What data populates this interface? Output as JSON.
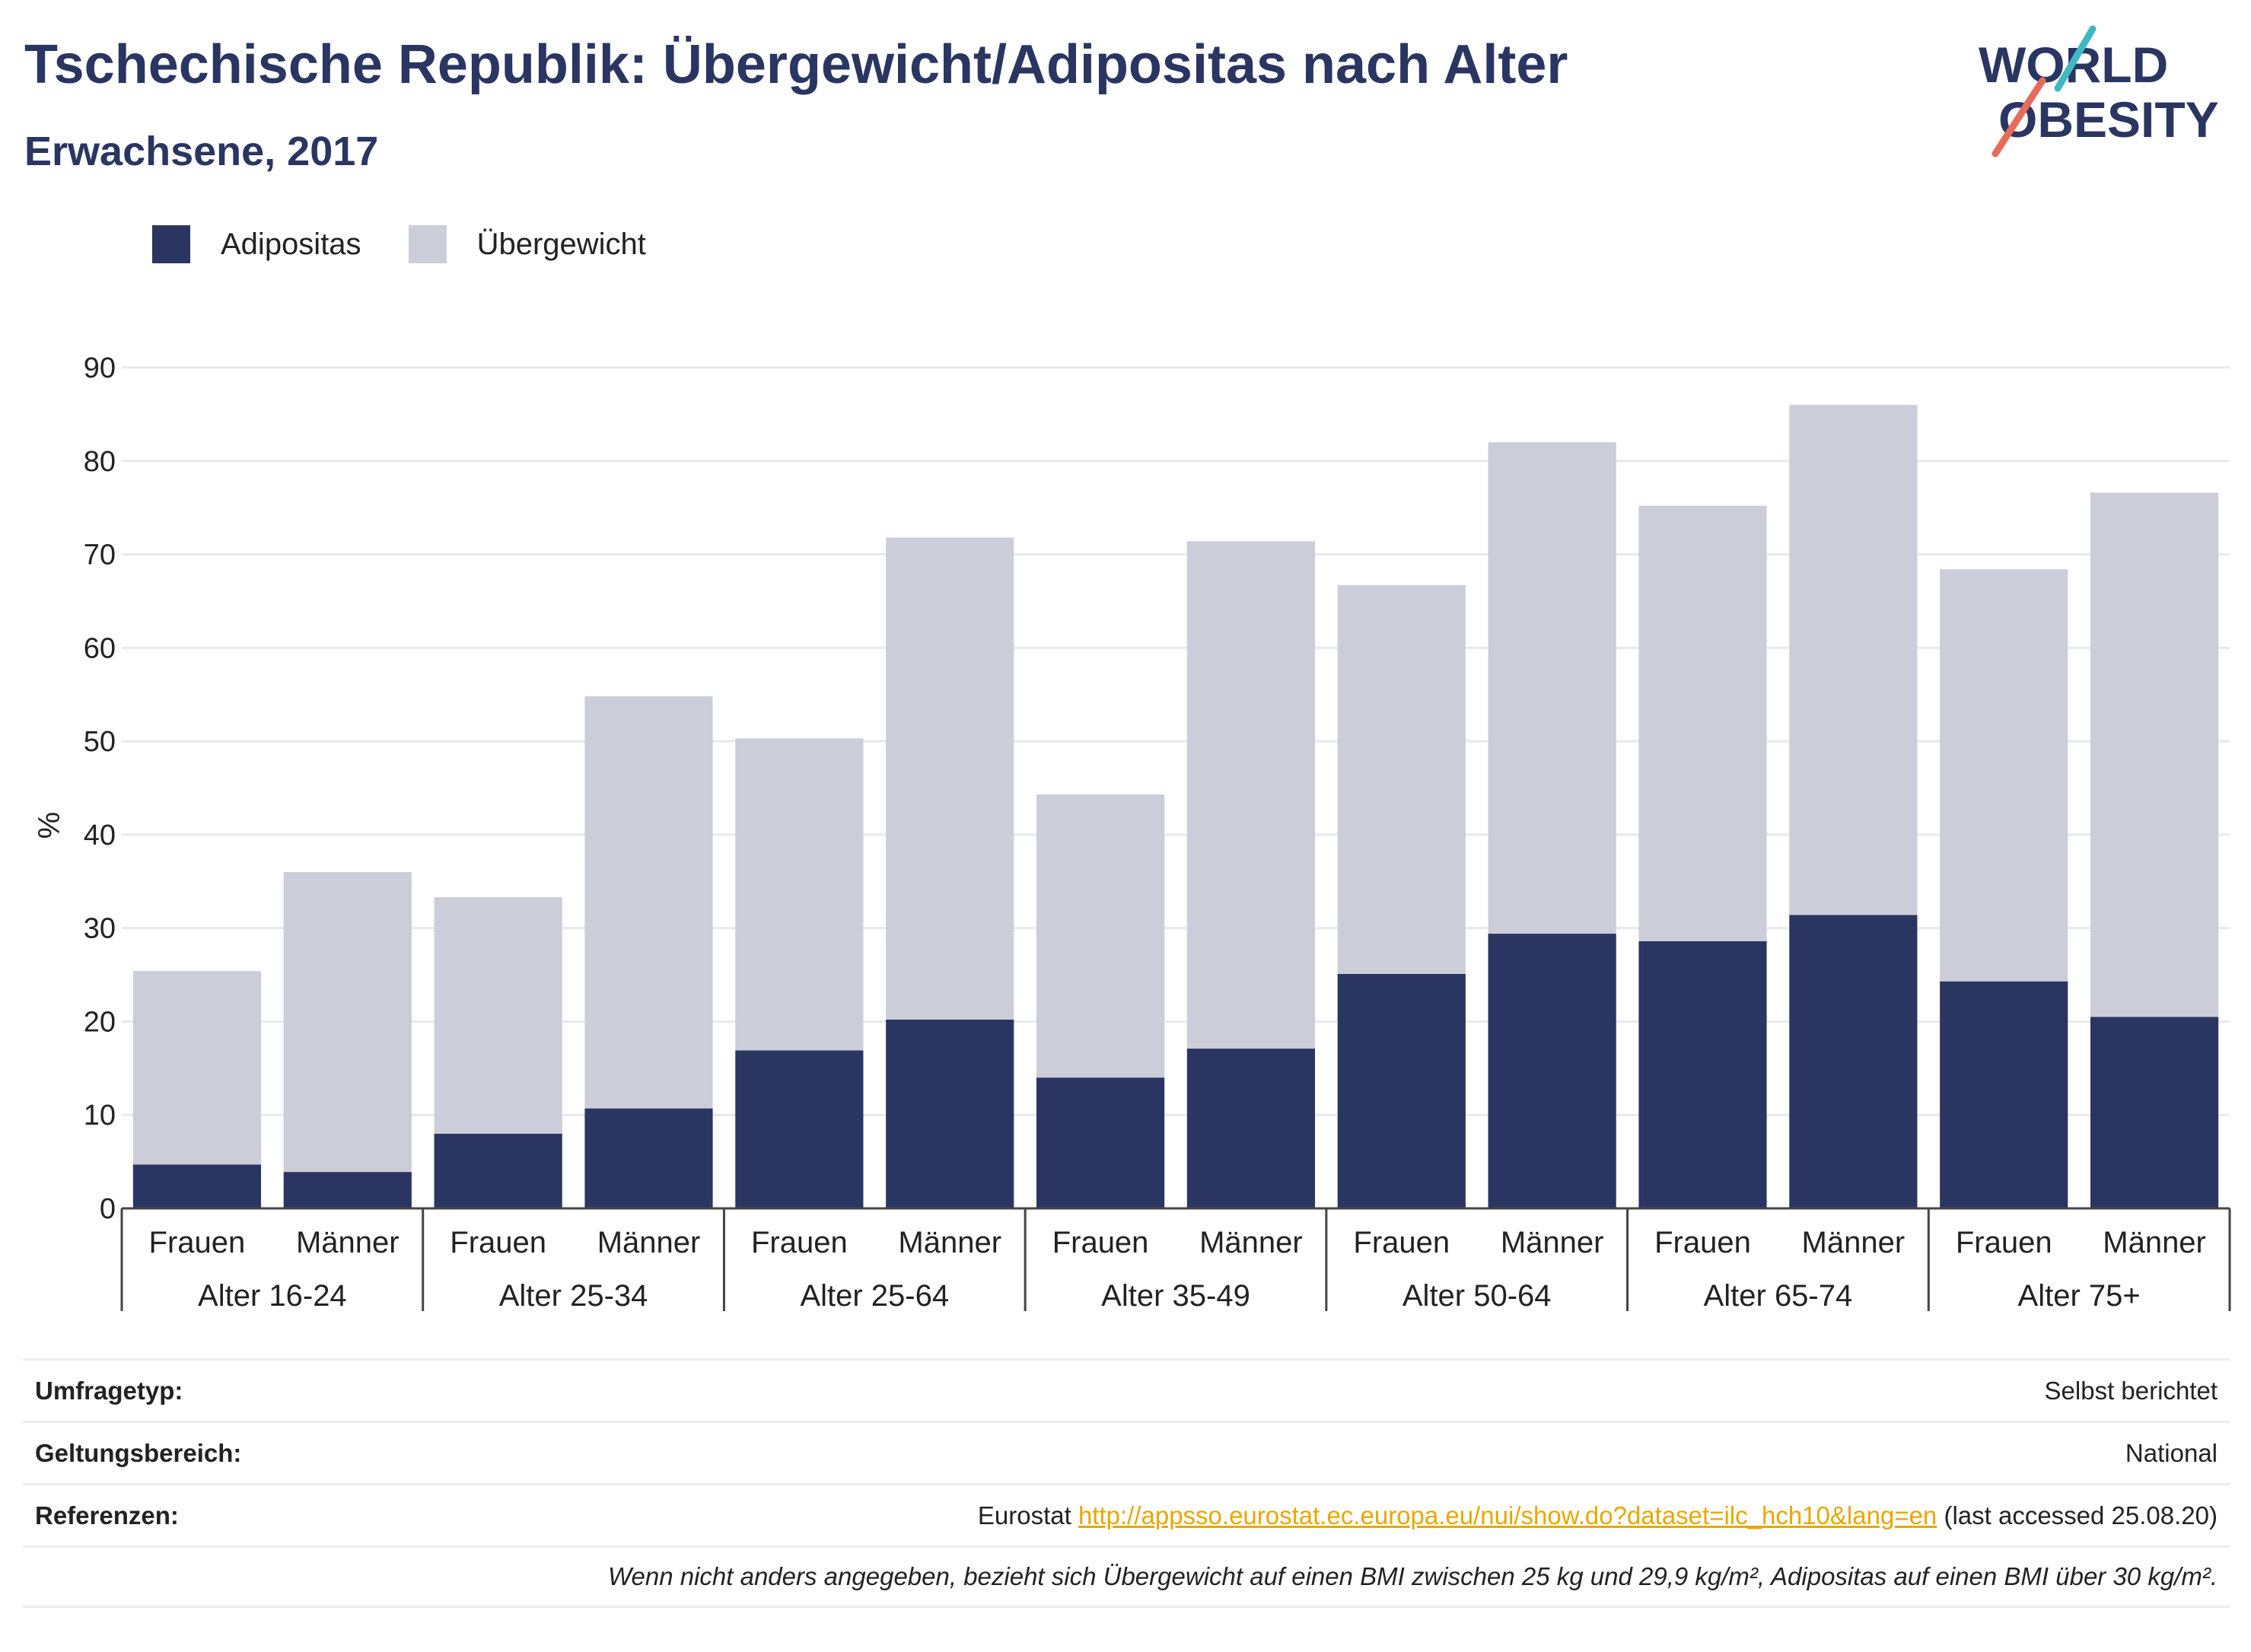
{
  "header": {
    "title": "Tschechische Republik: Übergewicht/Adipositas nach Alter",
    "subtitle": "Erwachsene, 2017"
  },
  "logo": {
    "line1": "WORLD",
    "line2": "OBESITY",
    "accent_teal": "#3fb8c2",
    "accent_red": "#e86a5a",
    "text_color": "#2a3562"
  },
  "legend": [
    {
      "label": "Adipositas",
      "color": "#2a3562"
    },
    {
      "label": "Übergewicht",
      "color": "#cbcdd8"
    }
  ],
  "chart_data": {
    "type": "bar",
    "stacked": true,
    "ylabel": "%",
    "ylim": [
      0,
      90
    ],
    "yticks": [
      0,
      10,
      20,
      30,
      40,
      50,
      60,
      70,
      80,
      90
    ],
    "grid": true,
    "legend_position": "top-left",
    "groups": [
      "Alter 16-24",
      "Alter 25-34",
      "Alter 25-64",
      "Alter 35-49",
      "Alter 50-64",
      "Alter 65-74",
      "Alter 75+"
    ],
    "subcategories": [
      "Frauen",
      "Männer"
    ],
    "series": [
      {
        "name": "Adipositas",
        "color": "#2a3562",
        "values": [
          4.7,
          3.9,
          8.0,
          10.7,
          16.9,
          20.2,
          14.0,
          17.1,
          25.1,
          29.4,
          28.6,
          31.4,
          24.3,
          20.5
        ]
      },
      {
        "name": "Übergewicht",
        "color": "#cbcdd8",
        "values": [
          20.7,
          32.1,
          25.3,
          44.1,
          33.4,
          51.6,
          30.3,
          54.3,
          41.6,
          52.6,
          46.6,
          54.6,
          44.1,
          56.1
        ]
      }
    ]
  },
  "info": {
    "survey_label": "Umfragetyp:",
    "survey_value": "Selbst berichtet",
    "scope_label": "Geltungsbereich:",
    "scope_value": "National",
    "ref_label": "Referenzen:",
    "ref_source": "Eurostat",
    "ref_url": "http://appsso.eurostat.ec.europa.eu/nui/show.do?dataset=ilc_hch10&lang=en",
    "ref_accessed": "(last accessed 25.08.20)",
    "note": "Wenn nicht anders angegeben, bezieht sich Übergewicht auf einen BMI zwischen 25 kg und 29,9 kg/m², Adipositas auf einen BMI über 30 kg/m²."
  }
}
